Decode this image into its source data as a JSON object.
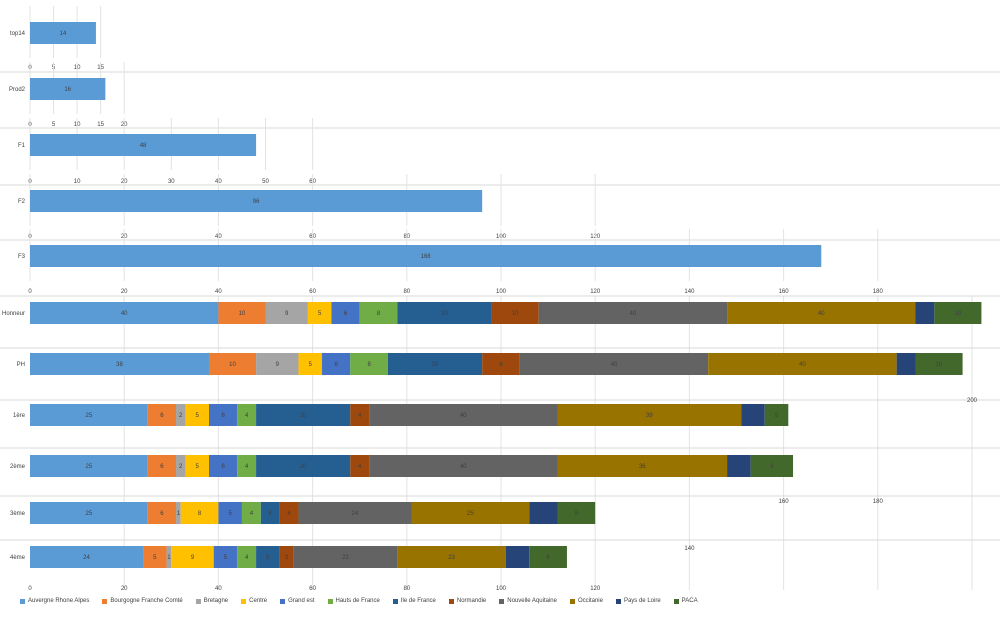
{
  "chart_data": {
    "type": "bar",
    "orientation": "horizontal",
    "stacked": true,
    "grid": true,
    "legend_position": "bottom",
    "regions": [
      "Auvergne Rhone Alpes",
      "Bourgogne Franche Comté",
      "Bretagne",
      "Centre",
      "Grand est",
      "Hauts de France",
      "Ile de France",
      "Normandie",
      "Nouvelle Aquitaine",
      "Occitanie",
      "Pays de Loire",
      "PACA"
    ],
    "colors": [
      "#5b9bd5",
      "#ed7d31",
      "#a5a5a5",
      "#ffc000",
      "#4472c4",
      "#70ad47",
      "#255e91",
      "#9e480e",
      "#636363",
      "#997300",
      "#264478",
      "#43682b"
    ],
    "panels": [
      {
        "label": "top14",
        "values": [
          14
        ],
        "labels": [
          "14"
        ],
        "ticks": [
          0,
          5,
          10,
          15
        ],
        "axis_max": 15
      },
      {
        "label": "Prod2",
        "values": [
          16
        ],
        "labels": [
          "16"
        ],
        "ticks": [
          0,
          5,
          10,
          15,
          20
        ],
        "axis_max": 20
      },
      {
        "label": "F1",
        "values": [
          48
        ],
        "labels": [
          "48"
        ],
        "ticks": [
          0,
          10,
          20,
          30,
          40,
          50,
          60
        ],
        "axis_max": 60
      },
      {
        "label": "F2",
        "values": [
          96
        ],
        "labels": [
          "96"
        ],
        "ticks": [
          0,
          20,
          40,
          60,
          80,
          100,
          120
        ],
        "axis_max": 120
      },
      {
        "label": "F3",
        "values": [
          168
        ],
        "labels": [
          "168"
        ],
        "ticks": [
          0,
          20,
          40,
          60,
          80,
          100,
          120,
          140,
          160,
          180
        ],
        "axis_max": 200
      },
      {
        "label": "Honneur",
        "values": [
          40,
          10,
          9,
          5,
          6,
          8,
          20,
          10,
          40,
          40,
          4,
          10
        ],
        "labels": [
          "40",
          "10",
          "9",
          "5",
          "6",
          "8",
          "20",
          "10",
          "40",
          "40",
          "",
          "10"
        ],
        "ticks": [],
        "axis_max": 200
      },
      {
        "label": "PH",
        "values": [
          38,
          10,
          9,
          5,
          6,
          8,
          20,
          8,
          40,
          40,
          4,
          10
        ],
        "labels": [
          "38",
          "10",
          "9",
          "5",
          "6",
          "8",
          "20",
          "8",
          "40",
          "40",
          "",
          "10"
        ],
        "ticks": [
          200
        ],
        "axis_max": 200
      },
      {
        "label": "1ère",
        "values": [
          25,
          6,
          2,
          5,
          6,
          4,
          20,
          4,
          40,
          39,
          5,
          5
        ],
        "labels": [
          "25",
          "6",
          "2",
          "5",
          "6",
          "4",
          "20",
          "4",
          "40",
          "39",
          "",
          "5"
        ],
        "ticks": [
          160,
          180
        ],
        "axis_max": 200
      },
      {
        "label": "2ème",
        "values": [
          25,
          6,
          2,
          5,
          6,
          4,
          20,
          4,
          40,
          36,
          5,
          9
        ],
        "labels": [
          "25",
          "6",
          "2",
          "5",
          "6",
          "4",
          "20",
          "4",
          "40",
          "36",
          "",
          "9"
        ],
        "ticks": [],
        "axis_max": 200
      },
      {
        "label": "3ème",
        "values": [
          25,
          6,
          1,
          8,
          5,
          4,
          4,
          4,
          24,
          25,
          6,
          8
        ],
        "labels": [
          "25",
          "6",
          "1",
          "8",
          "5",
          "4",
          "4",
          "4",
          "24",
          "25",
          "",
          "8"
        ],
        "ticks": [
          140
        ],
        "axis_max": 200
      },
      {
        "label": "4ème",
        "values": [
          24,
          5,
          1,
          9,
          5,
          4,
          5,
          3,
          22,
          23,
          5,
          8
        ],
        "labels": [
          "24",
          "5",
          "1",
          "9",
          "5",
          "4",
          "5",
          "3",
          "22",
          "23",
          "",
          "8"
        ],
        "ticks": [
          0,
          20,
          40,
          60,
          80,
          100,
          120
        ],
        "axis_max": 200
      }
    ]
  }
}
